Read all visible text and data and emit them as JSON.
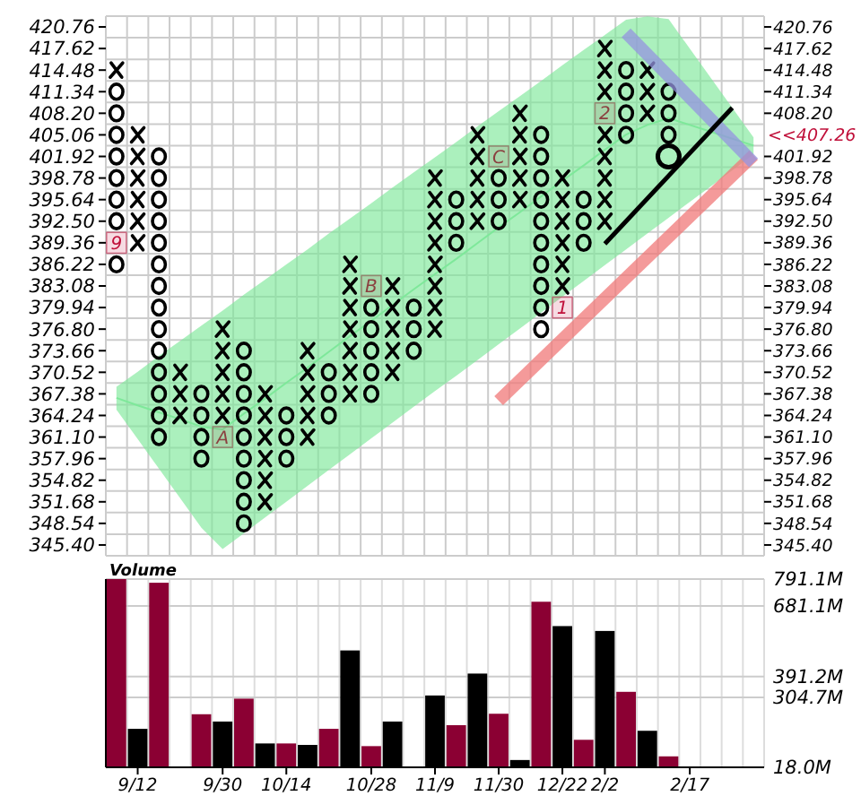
{
  "chart_data": [
    {
      "type": "scatter",
      "tick_labels": "y",
      "grid": true,
      "ylim": [
        343.83,
        422.33
      ],
      "categories": [
        null,
        null,
        null,
        null,
        null,
        null,
        null,
        null,
        null,
        null,
        null,
        null,
        null,
        null,
        null,
        null,
        null,
        null,
        null,
        null,
        null,
        null,
        null,
        null,
        null,
        null,
        null,
        null,
        null,
        null,
        null
      ],
      "yticks": [
        420.76,
        417.62,
        414.48,
        411.34,
        {
          "value": 408.2,
          "label": "408.20"
        },
        405.06,
        401.92,
        398.78,
        395.64,
        {
          "value": 392.5,
          "label": "392.50"
        },
        389.36,
        386.22,
        383.08,
        379.94,
        {
          "value": 376.8,
          "label": "376.80"
        },
        373.66,
        370.52,
        367.38,
        364.24,
        {
          "value": 361.1,
          "label": "361.10"
        },
        357.96,
        354.82,
        351.68,
        348.54,
        {
          "value": 345.4,
          "label": "345.40"
        }
      ],
      "y2lim": [
        343.83,
        422.33
      ],
      "y2ticks": [
        420.76,
        417.62,
        414.48,
        411.34,
        {
          "value": 408.2,
          "label": "408.20"
        },
        401.92,
        398.78,
        395.64,
        {
          "value": 392.5,
          "label": "392.50"
        },
        389.36,
        386.22,
        383.08,
        379.94,
        {
          "value": 376.8,
          "label": "376.80"
        },
        373.66,
        370.52,
        367.38,
        364.24,
        {
          "value": 361.1,
          "label": "361.10"
        },
        357.96,
        354.82,
        351.68,
        348.54,
        {
          "value": 345.4,
          "label": "345.40"
        }
      ],
      "series": [
        {
          "type": "line",
          "color": "#7ee89a",
          "values": [
            366.8,
            365.7,
            364.7,
            363.7,
            362.6,
            362.2,
            364.5,
            366.7,
            369.0,
            371.2,
            373.5,
            375.8,
            378.0,
            380.3,
            382.6,
            384.8,
            387.0,
            389.3,
            391.6,
            393.8,
            396.1,
            398.4,
            400.6,
            402.9,
            405.1,
            406.5,
            407.5,
            406.5,
            405.5,
            404.5,
            403.5
          ],
          "upper": [
            368.4,
            370.6,
            372.9,
            375.1,
            377.3,
            379.5,
            381.8,
            384.0,
            386.2,
            388.4,
            390.7,
            392.9,
            395.1,
            397.4,
            399.6,
            401.8,
            404.0,
            406.3,
            408.5,
            410.7,
            412.9,
            415.2,
            417.4,
            419.6,
            421.8,
            422.3,
            421.9,
            417.6,
            413.3,
            409.0,
            404.7
          ],
          "lower": [
            365.1,
            360.8,
            356.5,
            352.2,
            347.9,
            344.8,
            347.1,
            349.4,
            351.7,
            354.0,
            356.3,
            358.6,
            360.9,
            363.2,
            365.5,
            367.8,
            370.0,
            372.3,
            374.6,
            376.9,
            379.2,
            381.5,
            383.8,
            386.1,
            388.4,
            390.7,
            393.0,
            395.3,
            397.6,
            399.9,
            402.2
          ]
        },
        {
          "marker": "cross",
          "color": "#000000",
          "values": [
            414.48,
            389.36,
            null,
            364.24,
            null,
            null,
            null,
            351.68,
            null,
            361.1,
            null,
            367.38,
            null,
            370.52,
            null,
            376.8,
            null,
            392.5,
            null,
            395.64,
            null,
            null,
            null,
            392.5,
            null,
            408.2,
            null,
            null,
            null,
            null,
            null
          ]
        },
        {
          "marker": "cross",
          "color": "#000000",
          "values": [
            null,
            392.5,
            null,
            367.38,
            null,
            364.24,
            null,
            354.82,
            null,
            364.24,
            null,
            370.52,
            null,
            373.66,
            null,
            379.94,
            null,
            395.64,
            null,
            398.78,
            null,
            383.08,
            null,
            395.64,
            null,
            411.34,
            null,
            null,
            null,
            null,
            null
          ]
        },
        {
          "marker": "cross",
          "color": "#000000",
          "values": [
            null,
            395.64,
            null,
            370.52,
            null,
            367.38,
            null,
            357.96,
            null,
            367.38,
            null,
            373.66,
            null,
            376.8,
            null,
            383.08,
            null,
            398.78,
            null,
            401.92,
            null,
            386.22,
            null,
            398.78,
            null,
            414.48,
            null,
            null,
            null,
            null,
            null
          ]
        },
        {
          "marker": "cross",
          "color": "#000000",
          "values": [
            null,
            398.78,
            null,
            null,
            null,
            370.52,
            null,
            361.1,
            null,
            370.52,
            null,
            376.8,
            null,
            379.94,
            null,
            386.22,
            null,
            401.92,
            null,
            405.06,
            null,
            389.36,
            null,
            401.92,
            null,
            null,
            null,
            null,
            null,
            null,
            null
          ]
        },
        {
          "marker": "cross",
          "color": "#000000",
          "values": [
            null,
            401.92,
            null,
            null,
            null,
            373.66,
            null,
            364.24,
            null,
            373.66,
            null,
            379.94,
            null,
            383.08,
            null,
            389.36,
            null,
            405.06,
            null,
            408.2,
            null,
            392.5,
            null,
            405.06,
            null,
            null,
            null,
            null,
            null,
            null,
            null
          ]
        },
        {
          "marker": "cross",
          "color": "#000000",
          "values": [
            null,
            405.06,
            null,
            null,
            null,
            376.8,
            null,
            367.38,
            null,
            null,
            null,
            383.08,
            null,
            null,
            null,
            392.5,
            null,
            null,
            null,
            null,
            null,
            395.64,
            null,
            null,
            null,
            null,
            null,
            null,
            null,
            null,
            null
          ]
        },
        {
          "marker": "cross",
          "color": "#000000",
          "values": [
            null,
            null,
            null,
            null,
            null,
            null,
            null,
            null,
            null,
            null,
            null,
            386.22,
            null,
            null,
            null,
            395.64,
            null,
            null,
            null,
            null,
            null,
            398.78,
            null,
            411.34,
            null,
            null,
            null,
            null,
            null,
            null,
            null
          ]
        },
        {
          "marker": "cross",
          "color": "#000000",
          "values": [
            null,
            null,
            null,
            null,
            null,
            null,
            null,
            null,
            null,
            null,
            null,
            null,
            null,
            null,
            null,
            398.78,
            null,
            null,
            null,
            null,
            null,
            null,
            null,
            414.48,
            null,
            null,
            null,
            null,
            null,
            null,
            null
          ]
        },
        {
          "marker": "cross",
          "color": "#000000",
          "values": [
            null,
            null,
            null,
            null,
            null,
            null,
            null,
            null,
            null,
            null,
            null,
            null,
            null,
            null,
            null,
            null,
            null,
            null,
            null,
            null,
            null,
            null,
            null,
            417.62,
            null,
            null,
            null,
            null,
            null,
            null,
            null
          ]
        },
        {
          "marker": "circle",
          "color": "#000000",
          "values": [
            386.22,
            null,
            361.1,
            null,
            357.96,
            null,
            348.54,
            null,
            357.96,
            null,
            364.24,
            null,
            367.38,
            null,
            373.66,
            null,
            389.36,
            null,
            392.5,
            null,
            376.8,
            null,
            389.36,
            null,
            405.06,
            null,
            405.06,
            null,
            null,
            null,
            null
          ]
        },
        {
          "marker": "circle",
          "color": "#000000",
          "values": [
            null,
            null,
            364.24,
            null,
            361.1,
            null,
            351.68,
            null,
            361.1,
            null,
            367.38,
            null,
            370.52,
            null,
            376.8,
            null,
            392.5,
            null,
            395.64,
            null,
            379.94,
            null,
            392.5,
            null,
            408.2,
            null,
            408.2,
            null,
            null,
            null,
            null
          ]
        },
        {
          "marker": "circle",
          "color": "#000000",
          "values": [
            392.5,
            null,
            367.38,
            null,
            364.24,
            null,
            354.82,
            null,
            364.24,
            null,
            370.52,
            null,
            373.66,
            null,
            379.94,
            null,
            395.64,
            null,
            398.78,
            null,
            383.08,
            null,
            395.64,
            null,
            411.34,
            null,
            411.34,
            null,
            null,
            null,
            null
          ]
        },
        {
          "marker": "circle",
          "color": "#000000",
          "values": [
            395.64,
            null,
            370.52,
            null,
            367.38,
            null,
            357.96,
            null,
            null,
            null,
            null,
            null,
            376.8,
            null,
            null,
            null,
            null,
            null,
            null,
            null,
            386.22,
            null,
            null,
            null,
            414.48,
            null,
            null,
            null,
            null,
            null,
            null
          ]
        },
        {
          "marker": "circle",
          "color": "#000000",
          "values": [
            398.78,
            null,
            373.66,
            null,
            null,
            null,
            361.1,
            null,
            null,
            null,
            null,
            null,
            379.94,
            null,
            null,
            null,
            null,
            null,
            null,
            null,
            389.36,
            null,
            null,
            null,
            null,
            null,
            null,
            null,
            null,
            null,
            null
          ]
        },
        {
          "marker": "circle",
          "color": "#000000",
          "values": [
            401.92,
            null,
            376.8,
            null,
            null,
            null,
            364.24,
            null,
            null,
            null,
            null,
            null,
            null,
            null,
            null,
            null,
            null,
            null,
            null,
            null,
            392.5,
            null,
            null,
            null,
            null,
            null,
            null,
            null,
            null,
            null,
            null
          ]
        },
        {
          "marker": "circle",
          "color": "#000000",
          "values": [
            405.06,
            null,
            379.94,
            null,
            null,
            null,
            367.38,
            null,
            null,
            null,
            null,
            null,
            null,
            null,
            null,
            null,
            null,
            null,
            null,
            null,
            395.64,
            null,
            null,
            null,
            null,
            null,
            null,
            null,
            null,
            null,
            null
          ]
        },
        {
          "marker": "circle",
          "color": "#000000",
          "values": [
            408.2,
            null,
            383.08,
            null,
            null,
            null,
            370.52,
            null,
            null,
            null,
            null,
            null,
            null,
            null,
            null,
            null,
            null,
            null,
            null,
            null,
            398.78,
            null,
            null,
            null,
            null,
            null,
            null,
            null,
            null,
            null,
            null
          ]
        },
        {
          "marker": "circle",
          "color": "#000000",
          "values": [
            411.34,
            null,
            386.22,
            null,
            null,
            null,
            373.66,
            null,
            null,
            null,
            null,
            null,
            null,
            null,
            null,
            null,
            null,
            null,
            null,
            null,
            401.92,
            null,
            null,
            null,
            null,
            null,
            null,
            null,
            null,
            null,
            null
          ]
        },
        {
          "marker": "circle",
          "color": "#000000",
          "values": [
            null,
            null,
            389.36,
            null,
            null,
            null,
            null,
            null,
            null,
            null,
            null,
            null,
            null,
            null,
            null,
            null,
            null,
            null,
            null,
            null,
            405.06,
            null,
            null,
            null,
            null,
            null,
            null,
            null,
            null,
            null,
            null
          ]
        },
        {
          "marker": "circle",
          "color": "#000000",
          "values": [
            null,
            null,
            392.5,
            null,
            null,
            null,
            null,
            null,
            null,
            null,
            null,
            null,
            null,
            null,
            null,
            null,
            null,
            null,
            null,
            null,
            null,
            null,
            null,
            null,
            null,
            null,
            null,
            null,
            null,
            null,
            null
          ]
        },
        {
          "marker": "circle",
          "color": "#000000",
          "values": [
            null,
            null,
            395.64,
            null,
            null,
            null,
            null,
            null,
            null,
            null,
            null,
            null,
            null,
            null,
            null,
            null,
            null,
            null,
            null,
            null,
            null,
            null,
            null,
            null,
            null,
            null,
            null,
            null,
            null,
            null,
            null
          ]
        },
        {
          "marker": "circle",
          "color": "#000000",
          "values": [
            null,
            null,
            398.78,
            null,
            null,
            null,
            null,
            null,
            null,
            null,
            null,
            null,
            null,
            null,
            null,
            null,
            null,
            null,
            null,
            null,
            null,
            null,
            null,
            null,
            null,
            null,
            null,
            null,
            null,
            null,
            null
          ]
        },
        {
          "marker": "circle",
          "color": "#000000",
          "values": [
            null,
            null,
            401.92,
            null,
            null,
            null,
            null,
            null,
            null,
            null,
            null,
            null,
            null,
            null,
            null,
            null,
            null,
            null,
            null,
            null,
            null,
            null,
            null,
            null,
            null,
            null,
            null,
            null,
            null,
            null,
            null
          ]
        },
        {
          "type": "bubble",
          "color": "#000000",
          "values": [
            null,
            null,
            null,
            null,
            null,
            null,
            null,
            null,
            null,
            null,
            null,
            null,
            null,
            null,
            null,
            null,
            null,
            null,
            null,
            null,
            null,
            null,
            null,
            null,
            null,
            null,
            401.92,
            null,
            null,
            null,
            null
          ],
          "sizes": [
            null,
            null,
            null,
            null,
            null,
            null,
            null,
            null,
            null,
            null,
            null,
            null,
            null,
            null,
            null,
            null,
            null,
            null,
            null,
            null,
            null,
            null,
            null,
            null,
            null,
            null,
            1,
            null,
            null,
            null,
            null
          ]
        },
        {
          "name": "9",
          "marker": "square",
          "color": "#c0103a",
          "values": [
            389.36,
            null,
            null,
            null,
            null,
            null,
            null,
            null,
            null,
            null,
            null,
            null,
            null,
            null,
            null,
            null,
            null,
            null,
            null,
            null,
            null,
            null,
            null,
            null,
            null,
            null,
            null,
            null,
            null,
            null,
            null
          ]
        },
        {
          "name": "A",
          "marker": "square",
          "color": "#8b4040",
          "values": [
            null,
            null,
            null,
            null,
            null,
            361.1,
            null,
            null,
            null,
            null,
            null,
            null,
            null,
            null,
            null,
            null,
            null,
            null,
            null,
            null,
            null,
            null,
            null,
            null,
            null,
            null,
            null,
            null,
            null,
            null,
            null
          ]
        },
        {
          "name": "B",
          "marker": "square",
          "color": "#8b4040",
          "values": [
            null,
            null,
            null,
            null,
            null,
            null,
            null,
            null,
            null,
            null,
            null,
            null,
            383.08,
            null,
            null,
            null,
            null,
            null,
            null,
            null,
            null,
            null,
            null,
            null,
            null,
            null,
            null,
            null,
            null,
            null,
            null
          ]
        },
        {
          "name": "C",
          "marker": "square",
          "color": "#8b4040",
          "values": [
            null,
            null,
            null,
            null,
            null,
            null,
            null,
            null,
            null,
            null,
            null,
            null,
            null,
            null,
            null,
            null,
            null,
            null,
            401.92,
            null,
            null,
            null,
            null,
            null,
            null,
            null,
            null,
            null,
            null,
            null,
            null
          ]
        },
        {
          "name": "1",
          "marker": "square",
          "color": "#c0103a",
          "values": [
            null,
            null,
            null,
            null,
            null,
            null,
            null,
            null,
            null,
            null,
            null,
            null,
            null,
            null,
            null,
            null,
            null,
            null,
            null,
            null,
            null,
            379.94,
            null,
            null,
            null,
            null,
            null,
            null,
            null,
            null,
            null
          ]
        },
        {
          "name": "2",
          "marker": "square",
          "color": "#8b4040",
          "values": [
            null,
            null,
            null,
            null,
            null,
            null,
            null,
            null,
            null,
            null,
            null,
            null,
            null,
            null,
            null,
            null,
            null,
            null,
            null,
            null,
            null,
            null,
            null,
            408.2,
            null,
            null,
            null,
            null,
            null,
            null,
            null
          ]
        },
        {
          "type": "line",
          "color": "#f07878",
          "values": [
            null,
            null,
            null,
            null,
            null,
            null,
            null,
            null,
            null,
            null,
            null,
            null,
            null,
            null,
            null,
            null,
            null,
            null,
            366.4,
            null,
            null,
            null,
            null,
            null,
            null,
            null,
            null,
            null,
            null,
            null,
            402.1
          ]
        },
        {
          "type": "line",
          "color": "#9494e0",
          "values": [
            null,
            null,
            null,
            null,
            null,
            null,
            null,
            null,
            null,
            null,
            null,
            null,
            null,
            null,
            null,
            null,
            null,
            null,
            null,
            null,
            null,
            null,
            null,
            null,
            419.9,
            null,
            null,
            null,
            null,
            null,
            401.0
          ]
        },
        {
          "type": "line",
          "color": "#000000",
          "values": [
            null,
            null,
            null,
            null,
            null,
            null,
            null,
            null,
            null,
            null,
            null,
            null,
            null,
            null,
            null,
            null,
            null,
            null,
            null,
            null,
            null,
            null,
            null,
            389.2,
            null,
            null,
            null,
            null,
            null,
            409.0,
            null
          ]
        }
      ],
      "annotations": [
        "<<407.26"
      ]
    },
    {
      "type": "bar",
      "title": "Volume",
      "ylim": [
        18.0,
        791.1
      ],
      "grid": true,
      "yticks": [
        {
          "value": 791.1,
          "label": "791.1M"
        },
        {
          "value": 681.1,
          "label": "681.1M"
        },
        {
          "value": 391.2,
          "label": "391.2M"
        },
        {
          "value": 304.7,
          "label": "304.7M"
        },
        {
          "value": 18.0,
          "label": "18.0M"
        }
      ],
      "categories": [
        null,
        "9/12",
        null,
        null,
        null,
        "9/30",
        null,
        null,
        "10/14",
        null,
        null,
        null,
        "10/28",
        null,
        null,
        "11/9",
        null,
        null,
        "11/30",
        null,
        null,
        "12/22",
        null,
        "2/2",
        null,
        null,
        null,
        "2/17",
        null,
        null,
        null
      ],
      "values": [
        791.1,
        176,
        776,
        null,
        236,
        206,
        300,
        116,
        116,
        110,
        176,
        498,
        105,
        206,
        null,
        313,
        191,
        403,
        238,
        48,
        698,
        598,
        131,
        578,
        328,
        168,
        63,
        null,
        null,
        null,
        null
      ],
      "colors": [
        "#8b0033",
        "#000000",
        "#8b0033",
        null,
        "#8b0033",
        "#000000",
        "#8b0033",
        "#000000",
        "#8b0033",
        "#000000",
        "#8b0033",
        "#000000",
        "#8b0033",
        "#000000",
        null,
        "#000000",
        "#8b0033",
        "#000000",
        "#8b0033",
        "#000000",
        "#8b0033",
        "#000000",
        "#8b0033",
        "#000000",
        "#8b0033",
        "#000000",
        "#8b0033",
        null,
        null,
        null,
        null
      ]
    }
  ]
}
